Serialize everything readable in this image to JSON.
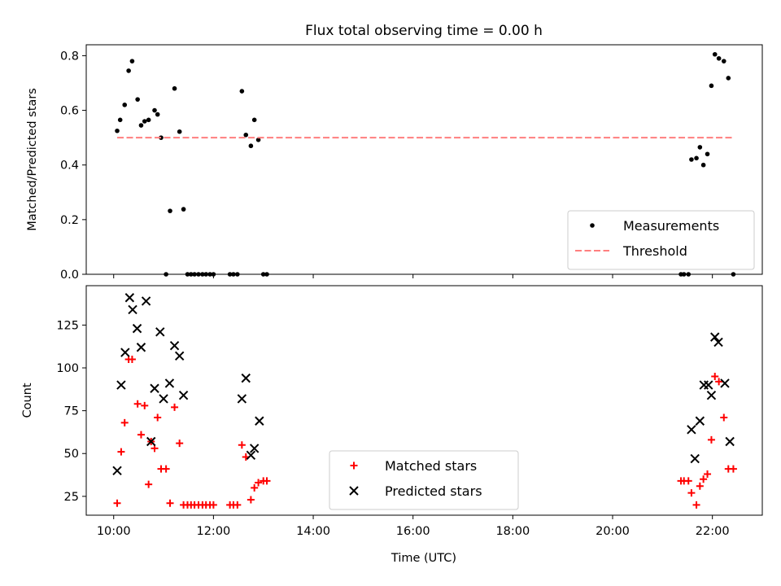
{
  "figure": {
    "title": "Flux total observing time = 0.00 h",
    "xlabel": "Time (UTC)",
    "xticks": [
      {
        "t": 10.0,
        "label": "10:00"
      },
      {
        "t": 12.0,
        "label": "12:00"
      },
      {
        "t": 14.0,
        "label": "14:00"
      },
      {
        "t": 16.0,
        "label": "16:00"
      },
      {
        "t": 18.0,
        "label": "18:00"
      },
      {
        "t": 20.0,
        "label": "20:00"
      },
      {
        "t": 22.0,
        "label": "22:00"
      }
    ],
    "xlim": [
      9.45,
      23.0
    ]
  },
  "chart_data": [
    {
      "type": "scatter",
      "ylabel": "Matched/Predicted stars",
      "ylim": [
        0,
        0.84
      ],
      "yticks": [
        0.0,
        0.2,
        0.4,
        0.6,
        0.8
      ],
      "ytick_labels": [
        "0.0",
        "0.2",
        "0.4",
        "0.6",
        "0.8"
      ],
      "legend_position": "lower-right",
      "series": [
        {
          "name": "Measurements",
          "kind": "scatter",
          "marker": "dot",
          "color": "#000000",
          "x": [
            10.07,
            10.13,
            10.22,
            10.3,
            10.37,
            10.48,
            10.55,
            10.62,
            10.7,
            10.82,
            10.88,
            10.95,
            11.05,
            11.13,
            11.22,
            11.32,
            11.4,
            11.48,
            11.55,
            11.62,
            11.7,
            11.78,
            11.85,
            11.93,
            12.0,
            12.33,
            12.4,
            12.48,
            12.57,
            12.65,
            12.75,
            12.82,
            12.9,
            13.0,
            13.07,
            21.37,
            21.43,
            21.52,
            21.58,
            21.68,
            21.75,
            21.82,
            21.9,
            21.98,
            22.05,
            22.13,
            22.23,
            22.32,
            22.42
          ],
          "y": [
            0.525,
            0.565,
            0.62,
            0.745,
            0.78,
            0.64,
            0.545,
            0.56,
            0.565,
            0.6,
            0.585,
            0.5,
            0.0,
            0.232,
            0.68,
            0.522,
            0.238,
            0.0,
            0.0,
            0.0,
            0.0,
            0.0,
            0.0,
            0.0,
            0.0,
            0.0,
            0.0,
            0.0,
            0.67,
            0.51,
            0.47,
            0.565,
            0.492,
            0.0,
            0.0,
            0.0,
            0.0,
            0.0,
            0.42,
            0.425,
            0.465,
            0.4,
            0.44,
            0.69,
            0.805,
            0.79,
            0.78,
            0.718,
            0.0
          ]
        },
        {
          "name": "Threshold",
          "kind": "hline",
          "color": "#ff7f7f",
          "dash": "dashed",
          "x": [
            10.07,
            22.42
          ],
          "y": [
            0.5,
            0.5
          ]
        }
      ]
    },
    {
      "type": "scatter",
      "ylabel": "Count",
      "ylim": [
        14,
        148
      ],
      "yticks": [
        25,
        50,
        75,
        100,
        125
      ],
      "ytick_labels": [
        "25",
        "50",
        "75",
        "100",
        "125"
      ],
      "legend_position": "lower-center",
      "series": [
        {
          "name": "Matched stars",
          "kind": "scatter",
          "marker": "plus",
          "color": "#ff0000",
          "x": [
            10.07,
            10.15,
            10.22,
            10.3,
            10.37,
            10.48,
            10.55,
            10.62,
            10.7,
            10.75,
            10.82,
            10.88,
            10.95,
            11.05,
            11.13,
            11.22,
            11.32,
            11.4,
            11.48,
            11.55,
            11.62,
            11.7,
            11.78,
            11.85,
            11.93,
            12.0,
            12.33,
            12.4,
            12.48,
            12.57,
            12.65,
            12.75,
            12.82,
            12.9,
            13.0,
            13.07,
            21.37,
            21.43,
            21.52,
            21.58,
            21.68,
            21.75,
            21.82,
            21.9,
            21.98,
            22.05,
            22.13,
            22.23,
            22.32,
            22.42
          ],
          "y": [
            21,
            51,
            68,
            105,
            105,
            79,
            61,
            78,
            32,
            57,
            53,
            71,
            41,
            41,
            21,
            77,
            56,
            20,
            20,
            20,
            20,
            20,
            20,
            20,
            20,
            20,
            20,
            20,
            20,
            55,
            48,
            23,
            30,
            33,
            34,
            34,
            34,
            34,
            34,
            27,
            20,
            31,
            35,
            38,
            58,
            95,
            92,
            71,
            41,
            41
          ]
        },
        {
          "name": "Predicted stars",
          "kind": "scatter",
          "marker": "x",
          "color": "#000000",
          "x": [
            10.07,
            10.15,
            10.23,
            10.32,
            10.38,
            10.47,
            10.55,
            10.65,
            10.75,
            10.82,
            10.93,
            11.0,
            11.12,
            11.22,
            11.32,
            11.4,
            12.57,
            12.65,
            12.75,
            12.82,
            12.92,
            21.58,
            21.65,
            21.75,
            21.83,
            21.92,
            21.98,
            22.05,
            22.12,
            22.25,
            22.35
          ],
          "y": [
            40,
            90,
            109,
            141,
            134,
            123,
            112,
            139,
            57,
            88,
            121,
            82,
            91,
            113,
            107,
            84,
            82,
            94,
            49,
            53,
            69,
            64,
            47,
            69,
            90,
            90,
            84,
            118,
            115,
            91,
            57
          ]
        }
      ]
    }
  ]
}
